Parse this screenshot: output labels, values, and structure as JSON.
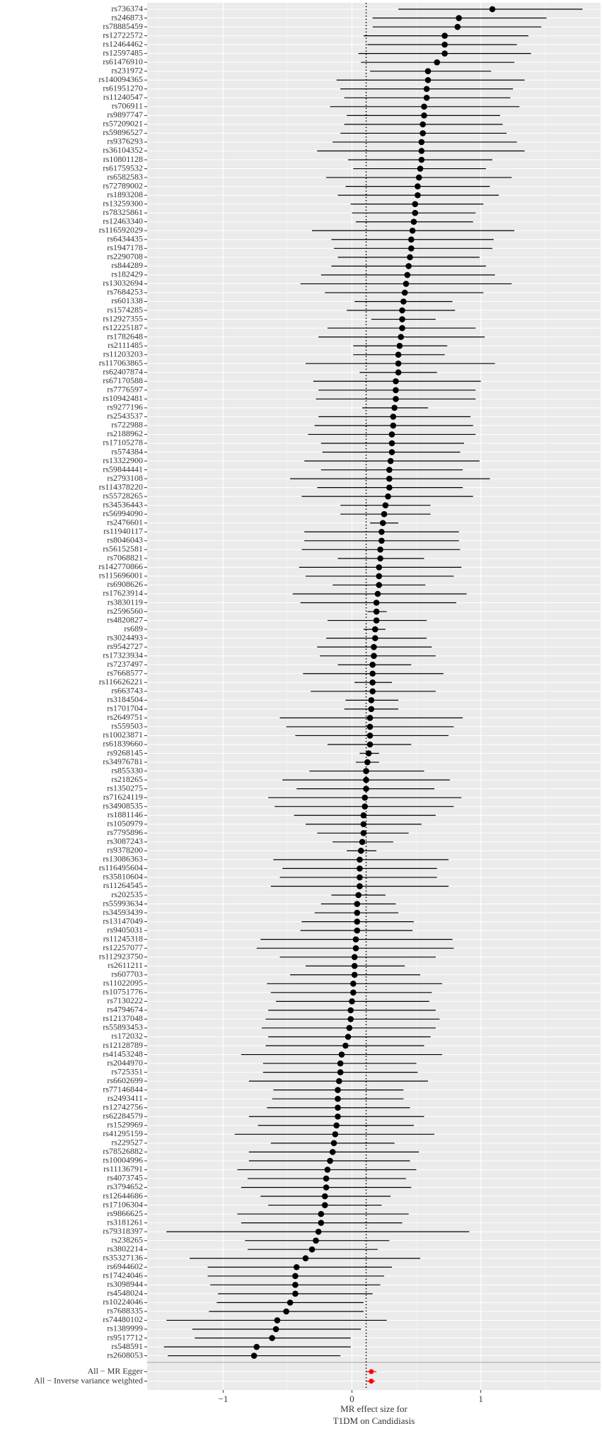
{
  "chart_data": {
    "type": "forest",
    "categories": [
      "rs736374",
      "rs246873",
      "rs78885459",
      "rs12722572",
      "rs12464462",
      "rs12597485",
      "rs61476910",
      "rs231972",
      "rs140094365",
      "rs61951270",
      "rs11240547",
      "rs706911",
      "rs9897747",
      "rs57209021",
      "rs59896527",
      "rs9376293",
      "rs36104352",
      "rs10801128",
      "rs61759532",
      "rs6582583",
      "rs72789002",
      "rs1893208",
      "rs13259300",
      "rs78325861",
      "rs12463340",
      "rs116592029",
      "rs6434435",
      "rs1947178",
      "rs2290708",
      "rs844289",
      "rs182429",
      "rs13032694",
      "rs7684253",
      "rs601338",
      "rs1574285",
      "rs12927355",
      "rs12225187",
      "rs1782648",
      "rs2111485",
      "rs11203203",
      "rs117063865",
      "rs62407874",
      "rs67170588",
      "rs7776597",
      "rs10942481",
      "rs9277196",
      "rs2543537",
      "rs722988",
      "rs2188962",
      "rs17105278",
      "rs574384",
      "rs13322900",
      "rs59844441",
      "rs2793108",
      "rs114378220",
      "rs55728265",
      "rs34536443",
      "rs56994090",
      "rs2476601",
      "rs11940117",
      "rs8046043",
      "rs56152581",
      "rs7068821",
      "rs142770866",
      "rs115696001",
      "rs6908626",
      "rs17623914",
      "rs3830119",
      "rs2596560",
      "rs4820827",
      "rs689",
      "rs3024493",
      "rs9542727",
      "rs17323934",
      "rs7237497",
      "rs7668577",
      "rs116626221",
      "rs663743",
      "rs3184504",
      "rs1701704",
      "rs2649751",
      "rs559503",
      "rs10023871",
      "rs61839660",
      "rs9268145",
      "rs34976781",
      "rs855330",
      "rs218265",
      "rs1350275",
      "rs71624119",
      "rs34908535",
      "rs1881146",
      "rs1050979",
      "rs7795896",
      "rs3087243",
      "rs9378200",
      "rs13086363",
      "rs116495604",
      "rs35810604",
      "rs11264545",
      "rs202535",
      "rs55993634",
      "rs34593439",
      "rs13147049",
      "rs9405031",
      "rs11245318",
      "rs12257077",
      "rs112923750",
      "rs2611211",
      "rs607703",
      "rs11022095",
      "rs10751776",
      "rs7130222",
      "rs4794674",
      "rs12137048",
      "rs55893453",
      "rs172032",
      "rs12128789",
      "rs41453248",
      "rs2044970",
      "rs725351",
      "rs6602699",
      "rs77146844",
      "rs2493411",
      "rs12742756",
      "rs62284579",
      "rs1529969",
      "rs41295159",
      "rs229527",
      "rs78526882",
      "rs10004996",
      "rs11136791",
      "rs4073745",
      "rs3794652",
      "rs12644686",
      "rs17106304",
      "rs9866625",
      "rs3181261",
      "rs79318397",
      "rs238265",
      "rs3802214",
      "rs35327136",
      "rs6944602",
      "rs17424046",
      "rs3098944",
      "rs4548024",
      "rs10224046",
      "rs7688335",
      "rs74480102",
      "rs1389999",
      "rs9517712",
      "rs548591",
      "rs2608053"
    ],
    "values": [
      1.09,
      0.83,
      0.82,
      0.72,
      0.72,
      0.72,
      0.66,
      0.59,
      0.59,
      0.58,
      0.58,
      0.56,
      0.56,
      0.55,
      0.55,
      0.54,
      0.54,
      0.54,
      0.53,
      0.52,
      0.51,
      0.51,
      0.49,
      0.49,
      0.48,
      0.47,
      0.46,
      0.46,
      0.45,
      0.44,
      0.43,
      0.42,
      0.41,
      0.4,
      0.39,
      0.39,
      0.39,
      0.38,
      0.37,
      0.36,
      0.36,
      0.36,
      0.34,
      0.34,
      0.34,
      0.33,
      0.32,
      0.32,
      0.31,
      0.31,
      0.31,
      0.3,
      0.29,
      0.29,
      0.29,
      0.28,
      0.26,
      0.25,
      0.24,
      0.23,
      0.23,
      0.22,
      0.22,
      0.21,
      0.21,
      0.21,
      0.2,
      0.19,
      0.19,
      0.19,
      0.18,
      0.18,
      0.17,
      0.17,
      0.16,
      0.16,
      0.16,
      0.16,
      0.15,
      0.15,
      0.14,
      0.14,
      0.14,
      0.14,
      0.13,
      0.12,
      0.11,
      0.11,
      0.11,
      0.1,
      0.1,
      0.09,
      0.09,
      0.09,
      0.08,
      0.07,
      0.06,
      0.06,
      0.06,
      0.06,
      0.05,
      0.04,
      0.04,
      0.04,
      0.04,
      0.03,
      0.03,
      0.02,
      0.02,
      0.02,
      0.01,
      0.01,
      0,
      -0.01,
      -0.01,
      -0.02,
      -0.03,
      -0.05,
      -0.08,
      -0.09,
      -0.09,
      -0.1,
      -0.11,
      -0.11,
      -0.11,
      -0.11,
      -0.12,
      -0.13,
      -0.14,
      -0.15,
      -0.17,
      -0.19,
      -0.2,
      -0.2,
      -0.21,
      -0.21,
      -0.24,
      -0.24,
      -0.26,
      -0.28,
      -0.31,
      -0.36,
      -0.43,
      -0.44,
      -0.44,
      -0.44,
      -0.48,
      -0.51,
      -0.58,
      -0.59,
      -0.62,
      -0.74,
      -0.76
    ],
    "lower": [
      0.36,
      0.16,
      0.16,
      0.09,
      0.12,
      0.05,
      0.07,
      0.14,
      -0.12,
      -0.09,
      -0.06,
      -0.17,
      -0.04,
      -0.06,
      -0.09,
      -0.15,
      -0.27,
      -0.03,
      0.01,
      -0.2,
      -0.05,
      -0.11,
      -0.01,
      0,
      0.03,
      -0.31,
      -0.16,
      -0.14,
      -0.11,
      -0.16,
      -0.24,
      -0.4,
      -0.21,
      0.02,
      -0.04,
      0.15,
      -0.19,
      -0.26,
      0.01,
      0.01,
      -0.36,
      0.06,
      -0.3,
      -0.26,
      -0.28,
      0.08,
      -0.26,
      -0.29,
      -0.34,
      -0.24,
      -0.23,
      -0.37,
      -0.24,
      -0.48,
      -0.27,
      -0.39,
      -0.09,
      -0.09,
      0.14,
      -0.37,
      -0.37,
      -0.39,
      -0.11,
      -0.41,
      -0.36,
      -0.15,
      -0.46,
      -0.4,
      0.12,
      -0.19,
      0.09,
      -0.2,
      -0.27,
      -0.25,
      -0.11,
      -0.38,
      0.02,
      -0.32,
      -0.05,
      -0.06,
      -0.56,
      -0.51,
      -0.44,
      -0.19,
      0.06,
      0.03,
      -0.33,
      -0.54,
      -0.43,
      -0.65,
      -0.6,
      -0.45,
      -0.36,
      -0.27,
      -0.15,
      -0.04,
      -0.61,
      -0.54,
      -0.56,
      -0.63,
      -0.16,
      -0.24,
      -0.29,
      -0.39,
      -0.4,
      -0.71,
      -0.74,
      -0.56,
      -0.36,
      -0.48,
      -0.66,
      -0.63,
      -0.59,
      -0.65,
      -0.67,
      -0.7,
      -0.65,
      -0.67,
      -0.86,
      -0.69,
      -0.69,
      -0.8,
      -0.61,
      -0.62,
      -0.66,
      -0.8,
      -0.73,
      -0.91,
      -0.63,
      -0.8,
      -0.8,
      -0.89,
      -0.81,
      -0.86,
      -0.71,
      -0.65,
      -0.89,
      -0.86,
      -1.44,
      -0.83,
      -0.81,
      -1.26,
      -1.12,
      -1.12,
      -1.1,
      -1.04,
      -1.05,
      -1.11,
      -1.44,
      -1.24,
      -1.22,
      -1.46,
      -1.43
    ],
    "upper": [
      1.79,
      1.51,
      1.47,
      1.37,
      1.28,
      1.39,
      1.26,
      1.08,
      1.34,
      1.25,
      1.23,
      1.3,
      1.15,
      1.17,
      1.2,
      1.28,
      1.34,
      1.09,
      1.04,
      1.24,
      1.07,
      1.14,
      1.02,
      0.96,
      0.94,
      1.26,
      1.1,
      1.09,
      0.99,
      1.04,
      1.11,
      1.24,
      1.02,
      0.78,
      0.8,
      0.65,
      0.96,
      1.03,
      0.74,
      0.72,
      1.11,
      0.66,
      1,
      0.96,
      0.96,
      0.59,
      0.92,
      0.94,
      0.96,
      0.87,
      0.84,
      0.99,
      0.86,
      1.07,
      0.86,
      0.94,
      0.61,
      0.61,
      0.36,
      0.83,
      0.83,
      0.84,
      0.56,
      0.85,
      0.79,
      0.57,
      0.89,
      0.81,
      0.27,
      0.58,
      0.26,
      0.58,
      0.62,
      0.65,
      0.46,
      0.71,
      0.31,
      0.65,
      0.36,
      0.36,
      0.86,
      0.79,
      0.75,
      0.46,
      0.21,
      0.21,
      0.56,
      0.76,
      0.64,
      0.85,
      0.79,
      0.65,
      0.54,
      0.44,
      0.32,
      0.19,
      0.75,
      0.66,
      0.66,
      0.75,
      0.26,
      0.34,
      0.36,
      0.48,
      0.47,
      0.78,
      0.79,
      0.65,
      0.41,
      0.53,
      0.7,
      0.62,
      0.6,
      0.65,
      0.68,
      0.65,
      0.61,
      0.56,
      0.7,
      0.5,
      0.51,
      0.59,
      0.4,
      0.4,
      0.45,
      0.56,
      0.48,
      0.64,
      0.33,
      0.52,
      0.45,
      0.5,
      0.42,
      0.46,
      0.3,
      0.23,
      0.44,
      0.39,
      0.91,
      0.29,
      0.2,
      0.53,
      0.31,
      0.25,
      0.22,
      0.16,
      0.09,
      0.09,
      0.27,
      0.07,
      -0.01,
      -0.01,
      -0.09
    ],
    "color": "#000000",
    "summary": {
      "categories": [
        "All − MR Egger",
        "All − Inverse variance weighted"
      ],
      "values": [
        0.15,
        0.15
      ],
      "lower": [
        0.11,
        0.11
      ],
      "upper": [
        0.19,
        0.18
      ],
      "color": "#ff0000"
    },
    "ref_line": 0.11,
    "xlim": [
      -1.59,
      1.93
    ],
    "xticks": [
      {
        "value": -1,
        "label": "−1"
      },
      0,
      1
    ],
    "xlabel": [
      "MR effect size for",
      "T1DM  on Candidiasis"
    ],
    "grid": true
  }
}
